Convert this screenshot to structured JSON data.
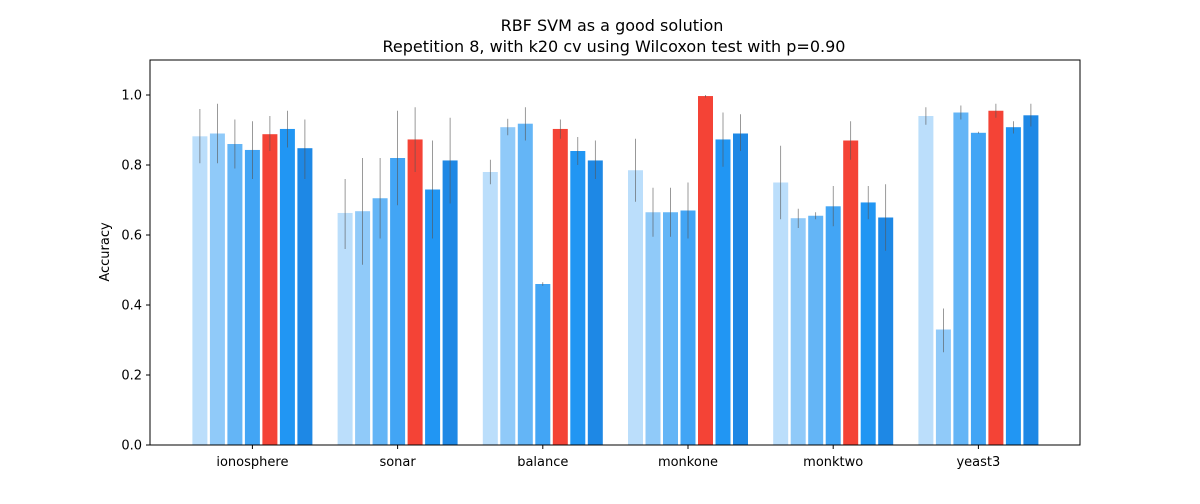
{
  "chart_data": {
    "type": "bar",
    "title": "RBF SVM as a good solution",
    "subtitle": "Repetition 8, with k20 cv using Wilcoxon test with p=0.90",
    "xlabel": "",
    "ylabel": "Accuracy",
    "ylim": [
      0,
      1.1
    ],
    "yticks": [
      "0.0",
      "0.2",
      "0.4",
      "0.6",
      "0.8",
      "1.0"
    ],
    "grid": false,
    "legend": "none",
    "categories": [
      "ionosphere",
      "sonar",
      "balance",
      "monkone",
      "monktwo",
      "yeast3"
    ],
    "highlight_index": 4,
    "colors": [
      "#bbdefb",
      "#90caf9",
      "#64b5f6",
      "#42a5f5",
      "#f44336",
      "#2196f3",
      "#1e88e5"
    ],
    "error_color": "#555555",
    "series": [
      {
        "values": [
          0.882,
          0.663,
          0.78,
          0.785,
          0.75,
          0.94
        ],
        "err_low": [
          0.805,
          0.56,
          0.745,
          0.695,
          0.645,
          0.915
        ],
        "err_high": [
          0.96,
          0.76,
          0.815,
          0.875,
          0.855,
          0.965
        ]
      },
      {
        "values": [
          0.89,
          0.668,
          0.908,
          0.665,
          0.648,
          0.33
        ],
        "err_low": [
          0.805,
          0.515,
          0.885,
          0.595,
          0.62,
          0.265
        ],
        "err_high": [
          0.975,
          0.82,
          0.932,
          0.735,
          0.675,
          0.39
        ]
      },
      {
        "values": [
          0.86,
          0.705,
          0.918,
          0.665,
          0.655,
          0.95
        ],
        "err_low": [
          0.79,
          0.59,
          0.87,
          0.595,
          0.645,
          0.93
        ],
        "err_high": [
          0.93,
          0.82,
          0.965,
          0.735,
          0.665,
          0.97
        ]
      },
      {
        "values": [
          0.843,
          0.82,
          0.46,
          0.67,
          0.682,
          0.892
        ],
        "err_low": [
          0.76,
          0.685,
          0.455,
          0.59,
          0.625,
          0.89
        ],
        "err_high": [
          0.925,
          0.955,
          0.465,
          0.75,
          0.74,
          0.895
        ]
      },
      {
        "values": [
          0.888,
          0.873,
          0.903,
          0.997,
          0.87,
          0.955
        ],
        "err_low": [
          0.84,
          0.78,
          0.875,
          0.993,
          0.815,
          0.935
        ],
        "err_high": [
          0.94,
          0.965,
          0.93,
          1.0,
          0.925,
          0.975
        ]
      },
      {
        "values": [
          0.903,
          0.73,
          0.84,
          0.873,
          0.693,
          0.908
        ],
        "err_low": [
          0.85,
          0.59,
          0.8,
          0.795,
          0.645,
          0.89
        ],
        "err_high": [
          0.955,
          0.87,
          0.88,
          0.95,
          0.74,
          0.925
        ]
      },
      {
        "values": [
          0.848,
          0.813,
          0.813,
          0.89,
          0.65,
          0.942
        ],
        "err_low": [
          0.76,
          0.69,
          0.76,
          0.84,
          0.555,
          0.91
        ],
        "err_high": [
          0.93,
          0.935,
          0.87,
          0.945,
          0.745,
          0.975
        ]
      }
    ]
  }
}
